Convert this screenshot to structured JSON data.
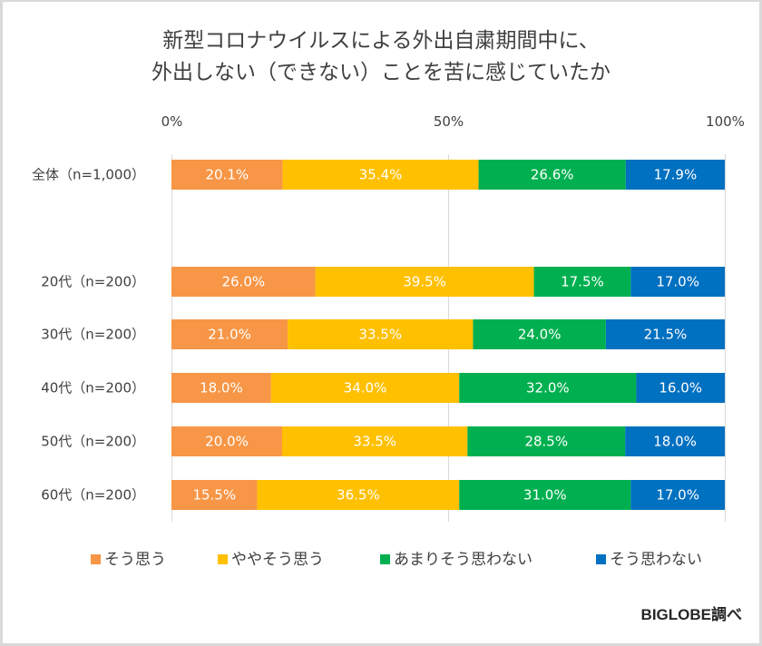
{
  "chart_data": {
    "type": "bar",
    "orientation": "horizontal",
    "stacked": "100%",
    "title_lines": [
      "新型コロナウイルスによる外出自粛期間中に、",
      "外出しない（できない）ことを苦に感じていたか"
    ],
    "categories": [
      "全体（n=1,000）",
      "20代（n=200）",
      "30代（n=200）",
      "40代（n=200）",
      "50代（n=200）",
      "60代（n=200）"
    ],
    "group_gap_after": 0,
    "series": [
      {
        "name": "そう思う",
        "color": "#F79646",
        "values": [
          20.1,
          26.0,
          21.0,
          18.0,
          20.0,
          15.5
        ]
      },
      {
        "name": "ややそう思う",
        "color": "#FFC000",
        "values": [
          35.4,
          39.5,
          33.5,
          34.0,
          33.5,
          36.5
        ]
      },
      {
        "name": "あまりそう思わない",
        "color": "#00B050",
        "values": [
          26.6,
          17.5,
          24.0,
          32.0,
          28.5,
          31.0
        ]
      },
      {
        "name": "そう思わない",
        "color": "#0070C0",
        "values": [
          17.9,
          17.0,
          21.5,
          16.0,
          18.0,
          17.0
        ]
      }
    ],
    "data_labels": [
      [
        "20.1%",
        "35.4%",
        "26.6%",
        "17.9%"
      ],
      [
        "26.0%",
        "39.5%",
        "17.5%",
        "17.0%"
      ],
      [
        "21.0%",
        "33.5%",
        "24.0%",
        "21.5%"
      ],
      [
        "18.0%",
        "34.0%",
        "32.0%",
        "16.0%"
      ],
      [
        "20.0%",
        "33.5%",
        "28.5%",
        "18.0%"
      ],
      [
        "15.5%",
        "36.5%",
        "31.0%",
        "17.0%"
      ]
    ],
    "xaxis": {
      "position": "top",
      "ticks": [
        0,
        50,
        100
      ],
      "tick_labels": [
        "0%",
        "50%",
        "100%"
      ],
      "range": [
        0,
        100
      ]
    },
    "gridlines": true,
    "legend_position": "bottom",
    "xlabel": "",
    "ylabel": ""
  },
  "credit": "BIGLOBE調べ"
}
